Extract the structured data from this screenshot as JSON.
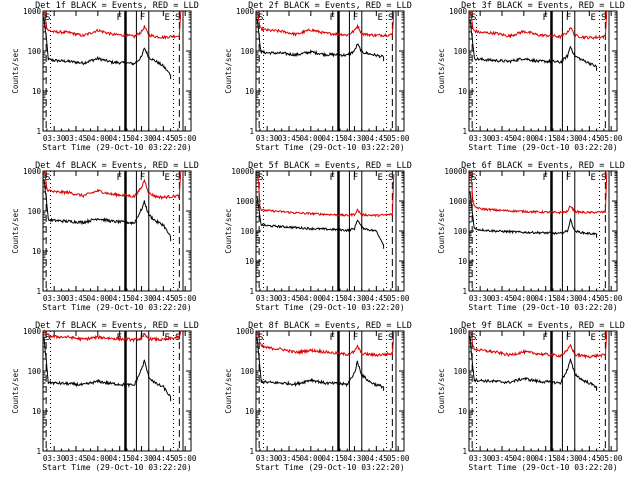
{
  "figure": {
    "background": "#ffffff",
    "events_color": "#000000",
    "lld_color": "#dd0000"
  },
  "chart_data": [
    {
      "type": "line",
      "title": "Det 1f BLACK = Events, RED = LLD",
      "xlabel": "Start Time (29-Oct-10 03:22:20)",
      "ylabel": "Counts/sec",
      "xlim": [
        "03:22:20",
        "05:04:00"
      ],
      "x_ticks": [
        "03:30",
        "03:45",
        "04:00",
        "04:15",
        "04:30",
        "04:45",
        "05:00"
      ],
      "ylim": [
        1,
        1000
      ],
      "y_scale": "log",
      "y_ticks": [
        "1",
        "10",
        "100",
        "1000"
      ],
      "region_letters": [
        "S",
        "F",
        "F",
        "E",
        "S"
      ],
      "series": [
        {
          "name": "Events",
          "x": [
            "03:23",
            "03:25",
            "03:26",
            "03:30",
            "03:40",
            "03:50",
            "04:00",
            "04:10",
            "04:20",
            "04:25",
            "04:30",
            "04:32",
            "04:35",
            "04:40",
            "04:45",
            "04:50"
          ],
          "values": [
            650,
            150,
            62,
            58,
            55,
            50,
            65,
            52,
            50,
            48,
            70,
            120,
            70,
            55,
            42,
            25
          ]
        },
        {
          "name": "LLD",
          "x": [
            "03:23",
            "03:24",
            "03:25",
            "03:26",
            "03:30",
            "03:40",
            "03:50",
            "04:00",
            "04:10",
            "04:20",
            "04:25",
            "04:30",
            "04:32",
            "04:35",
            "04:40",
            "04:45",
            "04:50",
            "04:56",
            "04:57"
          ],
          "values": [
            1000,
            700,
            360,
            330,
            300,
            290,
            240,
            330,
            260,
            245,
            230,
            300,
            410,
            250,
            230,
            220,
            230,
            240,
            1000
          ]
        }
      ]
    },
    {
      "type": "line",
      "title": "Det 2f BLACK = Events, RED = LLD",
      "xlabel": "Start Time (29-Oct-10 03:22:20)",
      "ylabel": "Counts/sec",
      "xlim": [
        "03:22:20",
        "05:04:00"
      ],
      "x_ticks": [
        "03:30",
        "03:45",
        "04:00",
        "04:15",
        "04:30",
        "04:45",
        "05:00"
      ],
      "ylim": [
        1,
        1000
      ],
      "y_scale": "log",
      "y_ticks": [
        "1",
        "10",
        "100",
        "1000"
      ],
      "region_letters": [
        "S",
        "F",
        "F",
        "E",
        "S"
      ],
      "series": [
        {
          "name": "Events",
          "x": [
            "03:23",
            "03:25",
            "03:26",
            "03:30",
            "03:40",
            "03:50",
            "04:00",
            "04:10",
            "04:20",
            "04:25",
            "04:30",
            "04:32",
            "04:35",
            "04:40",
            "04:45",
            "04:50"
          ],
          "values": [
            700,
            150,
            95,
            90,
            88,
            80,
            95,
            82,
            80,
            78,
            100,
            150,
            95,
            85,
            78,
            70
          ]
        },
        {
          "name": "LLD",
          "x": [
            "03:23",
            "03:24",
            "03:25",
            "03:26",
            "03:30",
            "03:40",
            "03:50",
            "04:00",
            "04:10",
            "04:20",
            "04:25",
            "04:30",
            "04:32",
            "04:35",
            "04:40",
            "04:45",
            "04:50",
            "04:56",
            "04:57"
          ],
          "values": [
            1000,
            700,
            380,
            350,
            330,
            310,
            260,
            340,
            275,
            265,
            250,
            320,
            430,
            270,
            255,
            245,
            250,
            255,
            1000
          ]
        }
      ]
    },
    {
      "type": "line",
      "title": "Det 3f BLACK = Events, RED = LLD",
      "xlabel": "Start Time (29-Oct-10 03:22:20)",
      "ylabel": "Counts/sec",
      "xlim": [
        "03:22:20",
        "05:04:00"
      ],
      "x_ticks": [
        "03:30",
        "03:45",
        "04:00",
        "04:15",
        "04:30",
        "04:45",
        "05:00"
      ],
      "ylim": [
        1,
        1000
      ],
      "y_scale": "log",
      "y_ticks": [
        "1",
        "10",
        "100",
        "1000"
      ],
      "region_letters": [
        "S",
        "F",
        "F",
        "E",
        "S"
      ],
      "series": [
        {
          "name": "Events",
          "x": [
            "03:23",
            "03:25",
            "03:26",
            "03:30",
            "03:40",
            "03:50",
            "04:00",
            "04:10",
            "04:20",
            "04:25",
            "04:30",
            "04:32",
            "04:35",
            "04:40",
            "04:45",
            "04:50"
          ],
          "values": [
            650,
            150,
            65,
            62,
            58,
            55,
            65,
            55,
            55,
            52,
            75,
            130,
            75,
            60,
            50,
            40
          ]
        },
        {
          "name": "LLD",
          "x": [
            "03:23",
            "03:24",
            "03:25",
            "03:26",
            "03:30",
            "03:40",
            "03:50",
            "04:00",
            "04:10",
            "04:20",
            "04:25",
            "04:30",
            "04:32",
            "04:35",
            "04:40",
            "04:45",
            "04:50",
            "04:56",
            "04:57"
          ],
          "values": [
            1000,
            700,
            350,
            320,
            290,
            280,
            235,
            310,
            250,
            240,
            225,
            290,
            400,
            245,
            225,
            215,
            220,
            230,
            1000
          ]
        }
      ]
    },
    {
      "type": "line",
      "title": "Det 4f BLACK = Events, RED = LLD",
      "xlabel": "Start Time (29-Oct-10 03:22:20)",
      "ylabel": "Counts/sec",
      "xlim": [
        "03:22:20",
        "05:04:00"
      ],
      "x_ticks": [
        "03:30",
        "03:45",
        "04:00",
        "04:15",
        "04:30",
        "04:45",
        "05:00"
      ],
      "ylim": [
        1,
        1000
      ],
      "y_scale": "log",
      "y_ticks": [
        "1",
        "10",
        "100",
        "1000"
      ],
      "region_letters": [
        "S",
        "F",
        "F",
        "E",
        "S"
      ],
      "series": [
        {
          "name": "Events",
          "x": [
            "03:23",
            "03:25",
            "03:26",
            "03:30",
            "03:40",
            "03:50",
            "04:00",
            "04:10",
            "04:20",
            "04:25",
            "04:30",
            "04:32",
            "04:35",
            "04:40",
            "04:45",
            "04:50"
          ],
          "values": [
            650,
            150,
            60,
            58,
            55,
            52,
            65,
            55,
            52,
            50,
            110,
            170,
            80,
            55,
            45,
            22
          ]
        },
        {
          "name": "LLD",
          "x": [
            "03:23",
            "03:24",
            "03:25",
            "03:26",
            "03:30",
            "03:40",
            "03:50",
            "04:00",
            "04:10",
            "04:20",
            "04:25",
            "04:30",
            "04:32",
            "04:35",
            "04:40",
            "04:45",
            "04:50",
            "04:56",
            "04:57"
          ],
          "values": [
            1000,
            700,
            360,
            330,
            300,
            290,
            240,
            320,
            260,
            245,
            230,
            380,
            600,
            280,
            230,
            220,
            230,
            240,
            1000
          ]
        }
      ]
    },
    {
      "type": "line",
      "title": "Det 5f BLACK = Events, RED = LLD",
      "xlabel": "Start Time (29-Oct-10 03:22:20)",
      "ylabel": "Counts/sec",
      "xlim": [
        "03:22:20",
        "05:04:00"
      ],
      "x_ticks": [
        "03:30",
        "03:45",
        "04:00",
        "04:15",
        "04:30",
        "04:45",
        "05:00"
      ],
      "ylim": [
        1,
        10000
      ],
      "y_scale": "log",
      "y_ticks": [
        "1",
        "10",
        "100",
        "1000",
        "10000"
      ],
      "region_letters": [
        "S",
        "F",
        "F",
        "E",
        "S"
      ],
      "series": [
        {
          "name": "Events",
          "x": [
            "03:23",
            "03:25",
            "03:26",
            "03:30",
            "03:40",
            "03:50",
            "04:00",
            "04:10",
            "04:20",
            "04:25",
            "04:30",
            "04:32",
            "04:35",
            "04:40",
            "04:45",
            "04:50"
          ],
          "values": [
            1500,
            300,
            160,
            150,
            140,
            130,
            120,
            115,
            110,
            105,
            120,
            240,
            130,
            110,
            100,
            35
          ]
        },
        {
          "name": "LLD",
          "x": [
            "03:23",
            "03:24",
            "03:25",
            "03:26",
            "03:30",
            "03:40",
            "03:50",
            "04:00",
            "04:10",
            "04:20",
            "04:25",
            "04:30",
            "04:32",
            "04:35",
            "04:40",
            "04:45",
            "04:50",
            "04:56",
            "04:57"
          ],
          "values": [
            8000,
            5000,
            700,
            500,
            480,
            440,
            400,
            380,
            360,
            340,
            330,
            360,
            500,
            350,
            340,
            330,
            340,
            360,
            8000
          ]
        }
      ]
    },
    {
      "type": "line",
      "title": "Det 6f BLACK = Events, RED = LLD",
      "xlabel": "Start Time (29-Oct-10 03:22:20)",
      "ylabel": "Counts/sec",
      "xlim": [
        "03:22:20",
        "05:04:00"
      ],
      "x_ticks": [
        "03:30",
        "03:45",
        "04:00",
        "04:15",
        "04:30",
        "04:45",
        "05:00"
      ],
      "ylim": [
        1,
        10000
      ],
      "y_scale": "log",
      "y_ticks": [
        "1",
        "10",
        "100",
        "1000",
        "10000"
      ],
      "region_letters": [
        "S",
        "F",
        "F",
        "E",
        "S"
      ],
      "series": [
        {
          "name": "Events",
          "x": [
            "03:23",
            "03:25",
            "03:26",
            "03:30",
            "03:40",
            "03:50",
            "04:00",
            "04:10",
            "04:20",
            "04:25",
            "04:30",
            "04:32",
            "04:35",
            "04:40",
            "04:45",
            "04:50"
          ],
          "values": [
            2000,
            300,
            120,
            110,
            100,
            95,
            90,
            88,
            85,
            82,
            100,
            240,
            100,
            88,
            82,
            80
          ]
        },
        {
          "name": "LLD",
          "x": [
            "03:23",
            "03:24",
            "03:25",
            "03:26",
            "03:30",
            "03:40",
            "03:50",
            "04:00",
            "04:10",
            "04:20",
            "04:25",
            "04:30",
            "04:32",
            "04:35",
            "04:40",
            "04:45",
            "04:50",
            "04:56",
            "04:57"
          ],
          "values": [
            9000,
            6000,
            900,
            650,
            550,
            500,
            470,
            450,
            430,
            420,
            410,
            440,
            700,
            440,
            420,
            410,
            420,
            430,
            9000
          ]
        }
      ]
    },
    {
      "type": "line",
      "title": "Det 7f BLACK = Events, RED = LLD",
      "xlabel": "Start Time (29-Oct-10 03:22:20)",
      "ylabel": "Counts/sec",
      "xlim": [
        "03:22:20",
        "05:04:00"
      ],
      "x_ticks": [
        "03:30",
        "03:45",
        "04:00",
        "04:15",
        "04:30",
        "04:45",
        "05:00"
      ],
      "ylim": [
        1,
        1000
      ],
      "y_scale": "log",
      "y_ticks": [
        "1",
        "10",
        "100",
        "1000"
      ],
      "region_letters": [
        "S",
        "F",
        "F",
        "E",
        "S"
      ],
      "series": [
        {
          "name": "Events",
          "x": [
            "03:23",
            "03:25",
            "03:26",
            "03:30",
            "03:40",
            "03:50",
            "04:00",
            "04:10",
            "04:20",
            "04:25",
            "04:30",
            "04:32",
            "04:35",
            "04:40",
            "04:45",
            "04:50"
          ],
          "values": [
            700,
            120,
            52,
            50,
            48,
            45,
            55,
            48,
            45,
            44,
            110,
            180,
            70,
            48,
            40,
            22
          ]
        },
        {
          "name": "LLD",
          "x": [
            "03:23",
            "03:24",
            "03:25",
            "03:26",
            "03:30",
            "03:40",
            "03:50",
            "04:00",
            "04:10",
            "04:20",
            "04:25",
            "04:30",
            "04:32",
            "04:35",
            "04:40",
            "04:45",
            "04:50",
            "04:56",
            "04:57"
          ],
          "values": [
            1000,
            900,
            800,
            750,
            720,
            700,
            620,
            700,
            650,
            620,
            600,
            650,
            800,
            640,
            620,
            600,
            650,
            700,
            1000
          ]
        }
      ]
    },
    {
      "type": "line",
      "title": "Det 8f BLACK = Events, RED = LLD",
      "xlabel": "Start Time (29-Oct-10 03:22:20)",
      "ylabel": "Counts/sec",
      "xlim": [
        "03:22:20",
        "05:04:00"
      ],
      "x_ticks": [
        "03:30",
        "03:45",
        "04:00",
        "04:15",
        "04:30",
        "04:45",
        "05:00"
      ],
      "ylim": [
        1,
        1000
      ],
      "y_scale": "log",
      "y_ticks": [
        "1",
        "10",
        "100",
        "1000"
      ],
      "region_letters": [
        "S",
        "F",
        "F",
        "E",
        "S"
      ],
      "series": [
        {
          "name": "Events",
          "x": [
            "03:23",
            "03:25",
            "03:26",
            "03:30",
            "03:40",
            "03:50",
            "04:00",
            "04:10",
            "04:20",
            "04:25",
            "04:30",
            "04:32",
            "04:35",
            "04:40",
            "04:45",
            "04:50"
          ],
          "values": [
            700,
            120,
            55,
            52,
            50,
            47,
            60,
            50,
            48,
            46,
            90,
            170,
            80,
            55,
            45,
            40
          ]
        },
        {
          "name": "LLD",
          "x": [
            "03:23",
            "03:24",
            "03:25",
            "03:26",
            "03:30",
            "03:40",
            "03:50",
            "04:00",
            "04:10",
            "04:20",
            "04:25",
            "04:30",
            "04:32",
            "04:35",
            "04:40",
            "04:45",
            "04:50",
            "04:56",
            "04:57"
          ],
          "values": [
            1000,
            800,
            500,
            420,
            380,
            350,
            290,
            330,
            300,
            270,
            260,
            300,
            420,
            270,
            260,
            250,
            260,
            270,
            1000
          ]
        }
      ]
    },
    {
      "type": "line",
      "title": "Det 9f BLACK = Events, RED = LLD",
      "xlabel": "Start Time (29-Oct-10 03:22:20)",
      "ylabel": "Counts/sec",
      "xlim": [
        "03:22:20",
        "05:04:00"
      ],
      "x_ticks": [
        "03:30",
        "03:45",
        "04:00",
        "04:15",
        "04:30",
        "04:45",
        "05:00"
      ],
      "ylim": [
        1,
        1000
      ],
      "y_scale": "log",
      "y_ticks": [
        "1",
        "10",
        "100",
        "1000"
      ],
      "region_letters": [
        "S",
        "F",
        "F",
        "E",
        "S"
      ],
      "series": [
        {
          "name": "Events",
          "x": [
            "03:23",
            "03:25",
            "03:26",
            "03:30",
            "03:40",
            "03:50",
            "04:00",
            "04:10",
            "04:20",
            "04:25",
            "04:30",
            "04:32",
            "04:35",
            "04:40",
            "04:45",
            "04:50"
          ],
          "values": [
            700,
            120,
            60,
            58,
            55,
            52,
            65,
            55,
            52,
            50,
            110,
            190,
            85,
            60,
            50,
            40
          ]
        },
        {
          "name": "LLD",
          "x": [
            "03:23",
            "03:24",
            "03:25",
            "03:26",
            "03:30",
            "03:40",
            "03:50",
            "04:00",
            "04:10",
            "04:20",
            "04:25",
            "04:30",
            "04:32",
            "04:35",
            "04:40",
            "04:45",
            "04:50",
            "04:56",
            "04:57"
          ],
          "values": [
            1000,
            800,
            420,
            360,
            330,
            300,
            250,
            300,
            270,
            250,
            240,
            320,
            450,
            260,
            240,
            230,
            240,
            250,
            1000
          ]
        }
      ]
    }
  ]
}
